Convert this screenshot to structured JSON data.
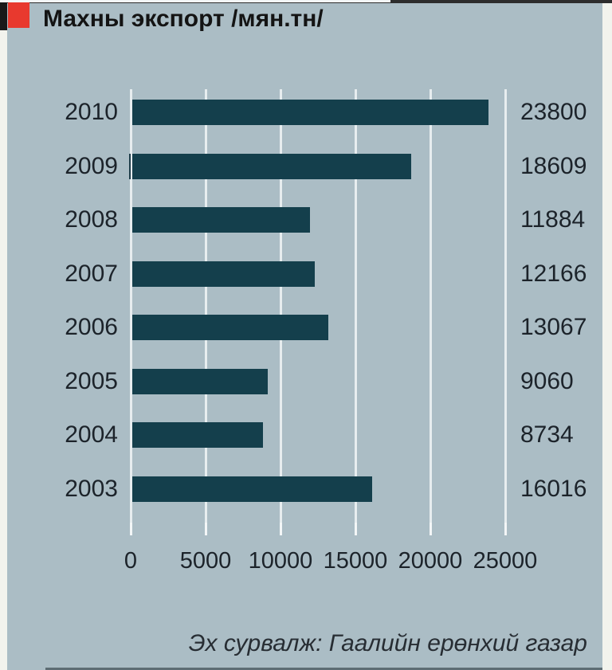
{
  "header": {
    "title": "Махны экспорт /мян.тн/"
  },
  "chart_data": {
    "type": "bar",
    "orientation": "horizontal",
    "title": "Махны экспорт /мян.тн/",
    "categories": [
      "2010",
      "2009",
      "2008",
      "2007",
      "2006",
      "2005",
      "2004",
      "2003"
    ],
    "values": [
      23800,
      18609,
      11884,
      12166,
      13067,
      9060,
      8734,
      16016
    ],
    "x_ticks": [
      0,
      5000,
      10000,
      15000,
      20000,
      25000
    ],
    "xlim": [
      0,
      25000
    ],
    "grid": true,
    "legend": "none",
    "value_labels_position": "right-column"
  },
  "footer": {
    "source": "Эх сурвалж: Гаалийн ерөнхий газар"
  },
  "colors": {
    "page_background": "#f2f3ed",
    "panel_background": "#abbdc5",
    "bar": "#143f4c",
    "accent_red": "#e8392e",
    "top_border": "#2d2d2d",
    "gridline": "#e7edef"
  }
}
